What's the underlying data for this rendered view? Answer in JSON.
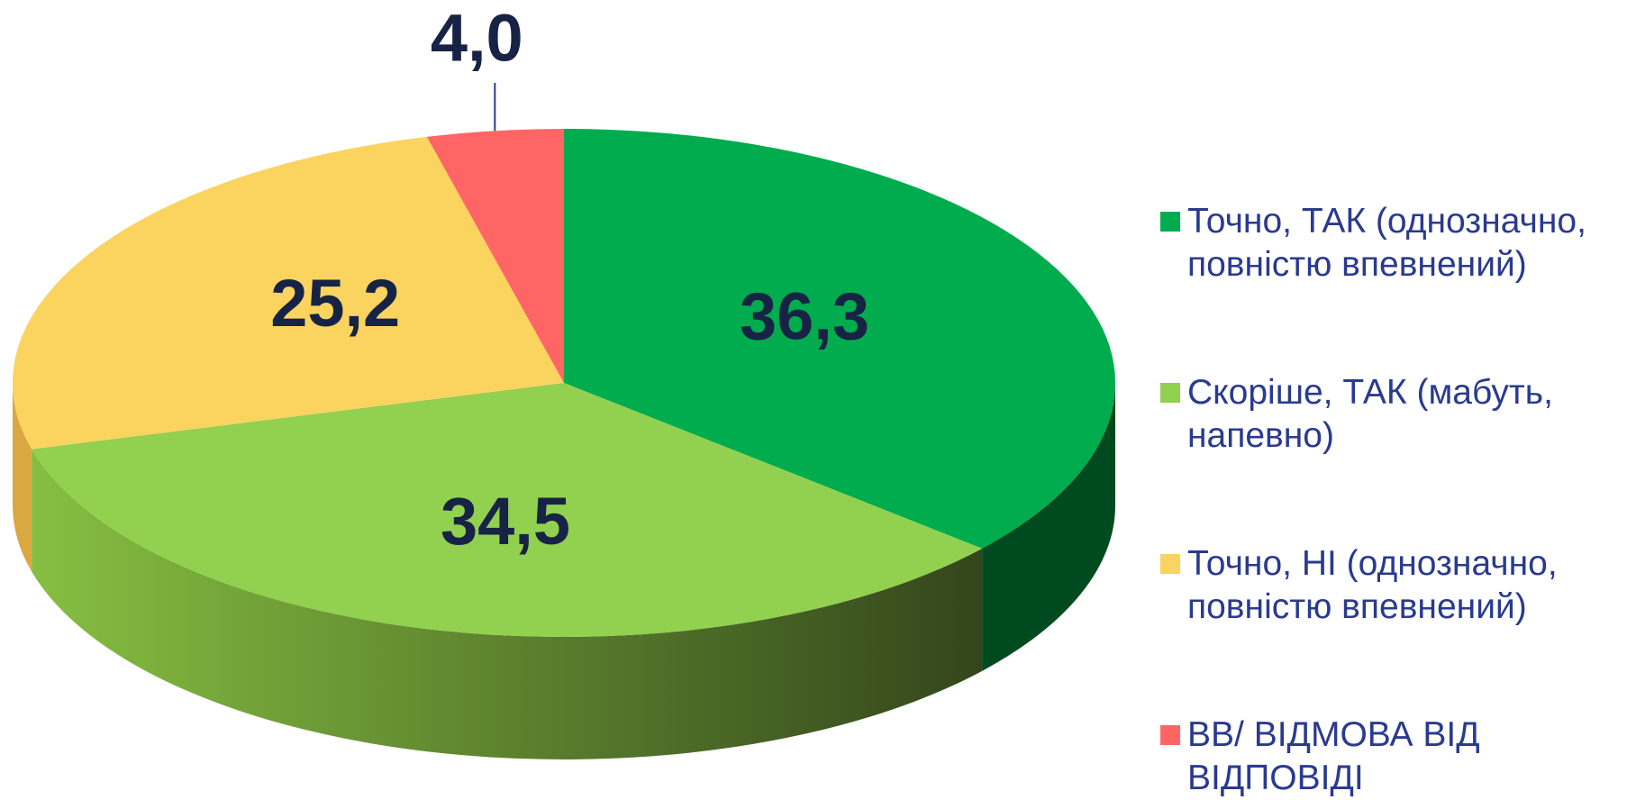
{
  "chart_data": {
    "type": "pie",
    "categories": [
      "Точно, ТАК (однозначно, повністю впевнений)",
      "Скоріше, ТАК (мабуть, напевно)",
      "Точно, НІ (однозначно, повністю впевнений)",
      "ВВ/ ВІДМОВА ВІД ВІДПОВІДІ"
    ],
    "values": [
      36.3,
      34.5,
      25.2,
      4.0
    ],
    "value_labels": [
      "36,3",
      "34,5",
      "25,2",
      "4,0"
    ],
    "colors": [
      "#00ac4e",
      "#92d050",
      "#fad45e",
      "#ff6565"
    ],
    "legend": "right"
  }
}
